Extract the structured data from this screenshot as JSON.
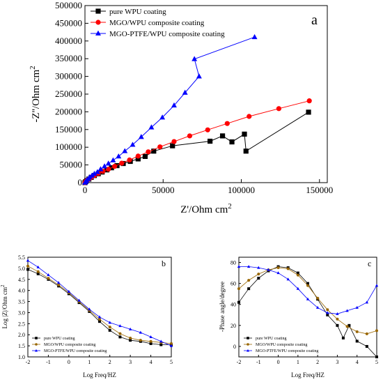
{
  "chart_data": [
    {
      "panel": "a",
      "type": "scatter",
      "xlabel": "Z'/Ohm cm",
      "xlabel_sup": "2",
      "ylabel": "-Z''/Ohm cm",
      "ylabel_sup": "2",
      "xlim": [
        0,
        155000
      ],
      "ylim": [
        0,
        500000
      ],
      "xticks": [
        0,
        50000,
        100000,
        150000
      ],
      "yticks": [
        0,
        50000,
        100000,
        150000,
        200000,
        250000,
        300000,
        350000,
        400000,
        450000,
        500000
      ],
      "legend_position": "top-left",
      "series": [
        {
          "name": "pure WPU coating",
          "color": "#000000",
          "marker": "square",
          "x": [
            0,
            500,
            1200,
            2500,
            4000,
            6000,
            8500,
            11000,
            14000,
            17000,
            20500,
            24500,
            29000,
            34000,
            38500,
            44000,
            56000,
            80000,
            88000,
            94000,
            102000,
            103000,
            143000
          ],
          "y": [
            0,
            3000,
            6000,
            10000,
            15000,
            20000,
            25000,
            30000,
            36000,
            42000,
            48000,
            54000,
            60000,
            67000,
            74000,
            89000,
            104000,
            117000,
            132000,
            115000,
            137000,
            89000,
            199000
          ]
        },
        {
          "name": "MGO/WPU composite coating",
          "color": "#ff0000",
          "marker": "circle",
          "x": [
            0,
            500,
            1200,
            2500,
            4000,
            6000,
            8500,
            11500,
            15000,
            19000,
            23500,
            28500,
            34000,
            40500,
            48000,
            57000,
            67000,
            78500,
            91000,
            105000,
            124000,
            143500
          ],
          "y": [
            0,
            3000,
            6000,
            10000,
            15000,
            20000,
            26000,
            32000,
            38000,
            46000,
            55000,
            64000,
            75000,
            87000,
            101000,
            116000,
            132000,
            149000,
            167000,
            187000,
            209000,
            231000
          ]
        },
        {
          "name": "MGO-PTFE/WPU composite coating",
          "color": "#0000ff",
          "marker": "triangle",
          "x": [
            0,
            500,
            1000,
            2000,
            3000,
            4500,
            6000,
            8000,
            10000,
            12500,
            15000,
            18000,
            21500,
            25500,
            30500,
            36000,
            42500,
            49500,
            57000,
            64000,
            73000,
            70000,
            108500
          ],
          "y": [
            0,
            3000,
            6000,
            10000,
            15000,
            20000,
            25000,
            30000,
            38000,
            46000,
            54000,
            63000,
            74000,
            89000,
            107000,
            129000,
            156000,
            184000,
            218000,
            254000,
            300000,
            349000,
            411000
          ]
        }
      ]
    },
    {
      "panel": "b",
      "type": "line",
      "xlabel": "Log Freq/HZ",
      "ylabel": "Log |Z|/Ohm cm",
      "ylabel_sup": "2",
      "xlim": [
        -2,
        5
      ],
      "ylim": [
        1.0,
        5.5
      ],
      "xticks": [
        -2,
        -1,
        0,
        1,
        2,
        3,
        4,
        5
      ],
      "yticks": [
        1.0,
        1.5,
        2.0,
        2.5,
        3.0,
        3.5,
        4.0,
        4.5,
        5.0,
        5.5
      ],
      "legend_position": "bottom-left",
      "series": [
        {
          "name": "pure WPU coating",
          "color": "#000000",
          "marker": "square",
          "x": [
            -2,
            -1.5,
            -1,
            -0.5,
            0,
            0.5,
            1,
            1.5,
            2,
            2.5,
            3,
            3.5,
            4,
            4.5,
            5
          ],
          "y": [
            4.95,
            4.75,
            4.5,
            4.2,
            3.85,
            3.45,
            3.05,
            2.6,
            2.2,
            1.9,
            1.75,
            1.7,
            1.6,
            1.55,
            1.55
          ]
        },
        {
          "name": "MGO/WPU composite coating",
          "color": "#996600",
          "marker": "circle",
          "x": [
            -2,
            -1.5,
            -1,
            -0.5,
            0,
            0.5,
            1,
            1.5,
            2,
            2.5,
            3,
            3.5,
            4,
            4.5,
            5
          ],
          "y": [
            5.1,
            4.85,
            4.55,
            4.25,
            3.9,
            3.5,
            3.1,
            2.7,
            2.35,
            2.05,
            1.85,
            1.75,
            1.7,
            1.65,
            1.6
          ]
        },
        {
          "name": "MGO-PTFE/WPU composite coating",
          "color": "#0000ff",
          "marker": "triangle",
          "x": [
            -2,
            -1.5,
            -1,
            -0.5,
            0,
            0.5,
            1,
            1.5,
            2,
            2.5,
            3,
            3.5,
            4,
            4.5,
            5
          ],
          "y": [
            5.35,
            5.05,
            4.7,
            4.35,
            3.95,
            3.55,
            3.15,
            2.8,
            2.55,
            2.4,
            2.25,
            2.1,
            1.9,
            1.7,
            1.5
          ]
        }
      ]
    },
    {
      "panel": "c",
      "type": "line",
      "xlabel": "Log Freq/HZ",
      "ylabel": "-Phase angle/degree",
      "xlim": [
        -2,
        5
      ],
      "ylim": [
        -10,
        85
      ],
      "xticks": [
        -2,
        -1,
        0,
        1,
        2,
        3,
        4,
        5
      ],
      "yticks": [
        0,
        20,
        40,
        60,
        80
      ],
      "legend_position": "bottom-left",
      "series": [
        {
          "name": "pure WPU coating",
          "color": "#000000",
          "marker": "square",
          "x": [
            -2,
            -1.5,
            -1,
            -0.5,
            0,
            0.5,
            1,
            1.5,
            2,
            2.5,
            3,
            3.3,
            3.6,
            4,
            4.5,
            5
          ],
          "y": [
            42,
            55,
            65,
            72,
            76,
            75,
            70,
            60,
            45,
            30,
            20,
            8,
            20,
            5,
            0,
            -10
          ]
        },
        {
          "name": "MGO/WPU composite coating",
          "color": "#996600",
          "marker": "circle",
          "x": [
            -2,
            -1.5,
            -1,
            -0.5,
            0,
            0.5,
            1,
            1.5,
            2,
            2.5,
            3,
            3.5,
            4,
            4.5,
            5
          ],
          "y": [
            55,
            63,
            69,
            73,
            75,
            74,
            68,
            58,
            46,
            35,
            26,
            19,
            14,
            12,
            15
          ]
        },
        {
          "name": "MGO-PTFE/WPU composite coating",
          "color": "#0000ff",
          "marker": "triangle",
          "x": [
            -2,
            -1.5,
            -1,
            -0.5,
            0,
            0.5,
            1,
            1.5,
            2,
            2.5,
            3,
            3.5,
            4,
            4.5,
            5
          ],
          "y": [
            76,
            76,
            75,
            73,
            70,
            64,
            55,
            45,
            37,
            32,
            31,
            34,
            37,
            42,
            58
          ]
        }
      ]
    }
  ]
}
